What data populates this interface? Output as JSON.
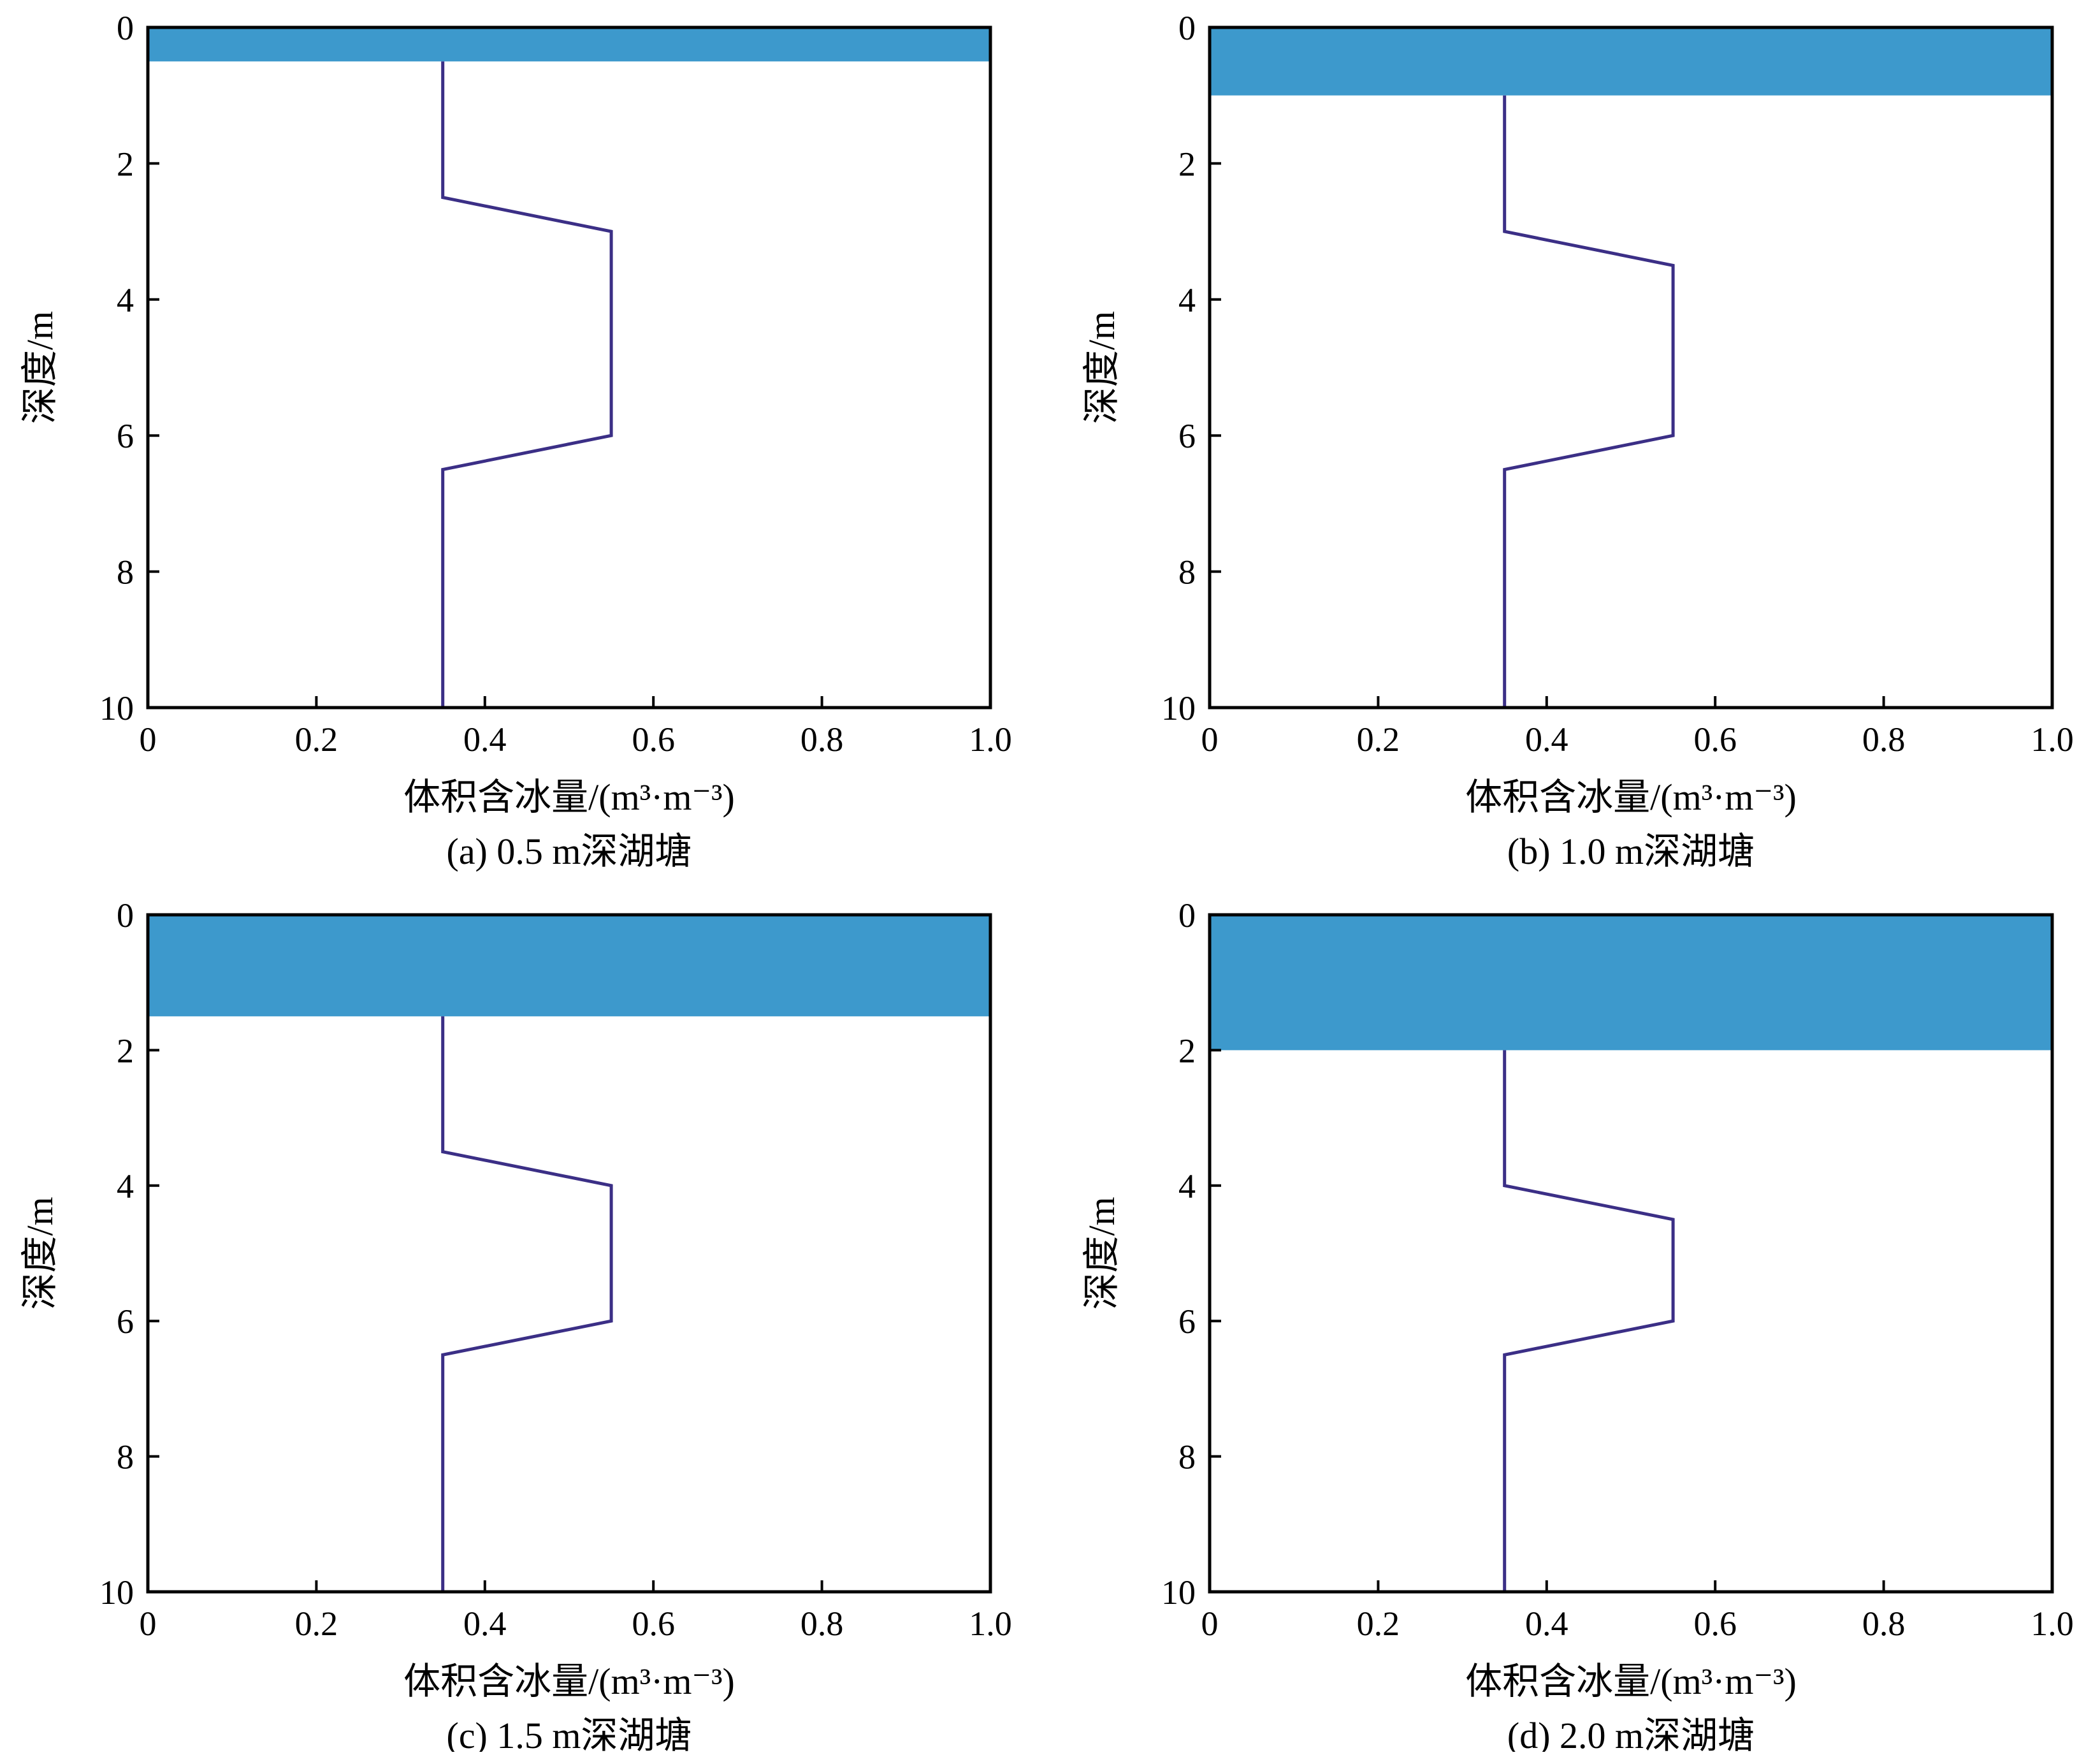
{
  "figure": {
    "colors": {
      "water": "#3d99cc",
      "line": "#3b2f86",
      "axis": "#000000"
    }
  },
  "chart_data": [
    {
      "type": "line",
      "caption": "(a) 0.5 m深湖塘",
      "xlabel": "体积含冰量/(m³·m⁻³)",
      "ylabel": "深度/m",
      "xlim": [
        0,
        1.0
      ],
      "ylim": [
        0,
        10
      ],
      "y_inverted": true,
      "xticks": [
        "0",
        "0.2",
        "0.4",
        "0.6",
        "0.8",
        "1.0"
      ],
      "yticks": [
        "0",
        "2",
        "4",
        "6",
        "8",
        "10"
      ],
      "water_depth": 0.5,
      "series": [
        {
          "x": [
            0.35,
            0.35,
            0.55,
            0.55,
            0.35,
            0.35
          ],
          "y": [
            0.5,
            2.5,
            3.0,
            6.0,
            6.5,
            10
          ]
        }
      ]
    },
    {
      "type": "line",
      "caption": "(b) 1.0 m深湖塘",
      "xlabel": "体积含冰量/(m³·m⁻³)",
      "ylabel": "深度/m",
      "xlim": [
        0,
        1.0
      ],
      "ylim": [
        0,
        10
      ],
      "y_inverted": true,
      "xticks": [
        "0",
        "0.2",
        "0.4",
        "0.6",
        "0.8",
        "1.0"
      ],
      "yticks": [
        "0",
        "2",
        "4",
        "6",
        "8",
        "10"
      ],
      "water_depth": 1.0,
      "series": [
        {
          "x": [
            0.35,
            0.35,
            0.55,
            0.55,
            0.35,
            0.35
          ],
          "y": [
            1.0,
            3.0,
            3.5,
            6.0,
            6.5,
            10
          ]
        }
      ]
    },
    {
      "type": "line",
      "caption": "(c) 1.5 m深湖塘",
      "xlabel": "体积含冰量/(m³·m⁻³)",
      "ylabel": "深度/m",
      "xlim": [
        0,
        1.0
      ],
      "ylim": [
        0,
        10
      ],
      "y_inverted": true,
      "xticks": [
        "0",
        "0.2",
        "0.4",
        "0.6",
        "0.8",
        "1.0"
      ],
      "yticks": [
        "0",
        "2",
        "4",
        "6",
        "8",
        "10"
      ],
      "water_depth": 1.5,
      "series": [
        {
          "x": [
            0.35,
            0.35,
            0.55,
            0.55,
            0.35,
            0.35
          ],
          "y": [
            1.5,
            3.5,
            4.0,
            6.0,
            6.5,
            10
          ]
        }
      ]
    },
    {
      "type": "line",
      "caption": "(d) 2.0 m深湖塘",
      "xlabel": "体积含冰量/(m³·m⁻³)",
      "ylabel": "深度/m",
      "xlim": [
        0,
        1.0
      ],
      "ylim": [
        0,
        10
      ],
      "y_inverted": true,
      "xticks": [
        "0",
        "0.2",
        "0.4",
        "0.6",
        "0.8",
        "1.0"
      ],
      "yticks": [
        "0",
        "2",
        "4",
        "6",
        "8",
        "10"
      ],
      "water_depth": 2.0,
      "series": [
        {
          "x": [
            0.35,
            0.35,
            0.55,
            0.55,
            0.35,
            0.35
          ],
          "y": [
            2.0,
            4.0,
            4.5,
            6.0,
            6.5,
            10
          ]
        }
      ]
    }
  ]
}
